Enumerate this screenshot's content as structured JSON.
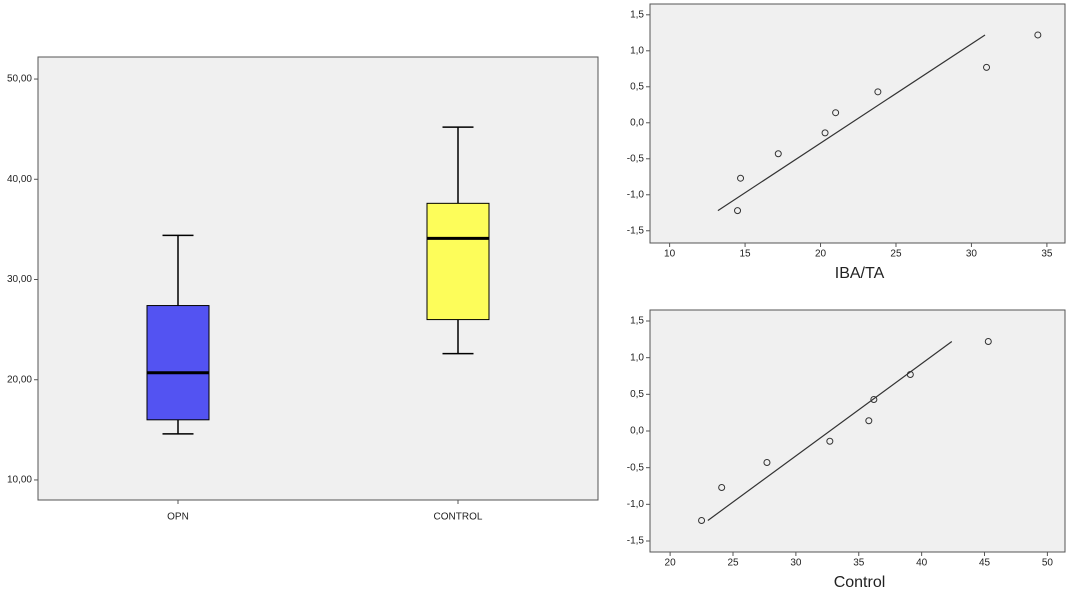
{
  "chart_data": [
    {
      "type": "box",
      "categories": [
        "OPN",
        "CONTROL"
      ],
      "colors": [
        "#5353f2",
        "#fdfd5a"
      ],
      "boxes": [
        {
          "min": 14.6,
          "q1": 16.0,
          "median": 20.7,
          "q3": 27.4,
          "max": 34.4
        },
        {
          "min": 22.6,
          "q1": 26.0,
          "median": 34.1,
          "q3": 37.6,
          "max": 45.2
        }
      ],
      "ylim": [
        8,
        52.2
      ],
      "yticks": [
        {
          "value": 10,
          "label": "10,00"
        },
        {
          "value": 20,
          "label": "20,00"
        },
        {
          "value": 30,
          "label": "30,00"
        },
        {
          "value": 40,
          "label": "40,00"
        },
        {
          "value": 50,
          "label": "50,00"
        }
      ]
    },
    {
      "type": "scatter",
      "x_label": "IBA/TA",
      "x": [
        14.5,
        14.7,
        17.2,
        20.3,
        21.0,
        23.8,
        31.0,
        34.4
      ],
      "values": [
        -1.22,
        -0.77,
        -0.43,
        -0.14,
        0.14,
        0.43,
        0.77,
        1.22
      ],
      "line": {
        "x": [
          13.2,
          30.9
        ],
        "y": [
          -1.22,
          1.22
        ]
      },
      "xlim": [
        8.7,
        36.2
      ],
      "xticks": [
        10,
        15,
        20,
        25,
        30,
        35
      ],
      "ylim": [
        -1.67,
        1.65
      ],
      "yticks": [
        {
          "value": -1.5,
          "label": "-1,5"
        },
        {
          "value": -1,
          "label": "-1,0"
        },
        {
          "value": -0.5,
          "label": "-0,5"
        },
        {
          "value": 0,
          "label": "0,0"
        },
        {
          "value": 0.5,
          "label": "0,5"
        },
        {
          "value": 1,
          "label": "1,0"
        },
        {
          "value": 1.5,
          "label": "1,5"
        }
      ]
    },
    {
      "type": "scatter",
      "x_label": "Control",
      "x": [
        22.5,
        24.1,
        27.7,
        32.7,
        35.8,
        36.2,
        39.1,
        45.3
      ],
      "values": [
        -1.22,
        -0.77,
        -0.43,
        -0.14,
        0.14,
        0.43,
        0.77,
        1.22
      ],
      "line": {
        "x": [
          23.0,
          42.4
        ],
        "y": [
          -1.22,
          1.22
        ]
      },
      "xlim": [
        18.4,
        51.4
      ],
      "xticks": [
        20,
        25,
        30,
        35,
        40,
        45,
        50
      ],
      "ylim": [
        -1.65,
        1.65
      ],
      "yticks": [
        {
          "value": -1.5,
          "label": "-1,5"
        },
        {
          "value": -1,
          "label": "-1,0"
        },
        {
          "value": -0.5,
          "label": "-0,5"
        },
        {
          "value": 0,
          "label": "0,0"
        },
        {
          "value": 0.5,
          "label": "0,5"
        },
        {
          "value": 1,
          "label": "1,0"
        },
        {
          "value": 1.5,
          "label": "1,5"
        }
      ]
    }
  ]
}
